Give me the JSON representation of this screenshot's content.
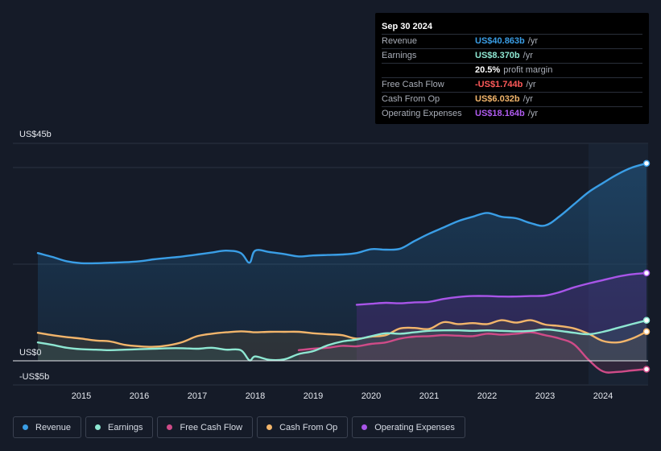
{
  "tooltip": {
    "date": "Sep 30 2024",
    "rows": [
      {
        "label": "Revenue",
        "value": "US$40.863b",
        "unit": "/yr",
        "color": "#3a9ee6"
      },
      {
        "label": "Earnings",
        "value": "US$8.370b",
        "unit": "/yr",
        "color": "#8ee7d2"
      },
      {
        "label": "",
        "value": "20.5%",
        "unit": "profit margin",
        "color": "#ffffff"
      },
      {
        "label": "Free Cash Flow",
        "value": "-US$1.744b",
        "unit": "/yr",
        "color": "#ff5a5a"
      },
      {
        "label": "Cash From Op",
        "value": "US$6.032b",
        "unit": "/yr",
        "color": "#f2b56b"
      },
      {
        "label": "Operating Expenses",
        "value": "US$18.164b",
        "unit": "/yr",
        "color": "#b05cf0"
      }
    ]
  },
  "legend": [
    {
      "label": "Revenue",
      "color": "#3a9ee6"
    },
    {
      "label": "Earnings",
      "color": "#8ee7d2"
    },
    {
      "label": "Free Cash Flow",
      "color": "#cf4b88"
    },
    {
      "label": "Cash From Op",
      "color": "#f2b56b"
    },
    {
      "label": "Operating Expenses",
      "color": "#a855e8"
    }
  ],
  "chart_data": {
    "type": "area",
    "ylim": [
      -5,
      45
    ],
    "y_tick_labels": [
      {
        "value": 45,
        "label": "US$45b"
      },
      {
        "value": 0,
        "label": "US$0"
      },
      {
        "value": -5,
        "label": "-US$5b"
      }
    ],
    "x_ticks": [
      2015,
      2016,
      2017,
      2018,
      2019,
      2020,
      2021,
      2022,
      2023,
      2024
    ],
    "xlim": [
      2014.25,
      2024.75
    ],
    "highlight_start": 2023.75,
    "series": [
      {
        "name": "Revenue",
        "color": "#3a9ee6",
        "x": [
          2014.25,
          2014.5,
          2014.75,
          2015.0,
          2015.25,
          2015.5,
          2015.75,
          2016.0,
          2016.25,
          2016.5,
          2016.75,
          2017.0,
          2017.25,
          2017.5,
          2017.75,
          2017.9,
          2018.0,
          2018.25,
          2018.5,
          2018.75,
          2019.0,
          2019.25,
          2019.5,
          2019.75,
          2020.0,
          2020.25,
          2020.5,
          2020.75,
          2021.0,
          2021.25,
          2021.5,
          2021.75,
          2022.0,
          2022.25,
          2022.5,
          2022.75,
          2023.0,
          2023.25,
          2023.5,
          2023.75,
          2024.0,
          2024.25,
          2024.5,
          2024.75
        ],
        "y": [
          22.3,
          21.5,
          20.6,
          20.2,
          20.2,
          20.3,
          20.4,
          20.6,
          21.0,
          21.3,
          21.6,
          22.0,
          22.4,
          22.8,
          22.3,
          20.3,
          22.8,
          22.5,
          22.1,
          21.6,
          21.8,
          21.9,
          22.0,
          22.3,
          23.1,
          23.0,
          23.2,
          24.8,
          26.3,
          27.6,
          28.9,
          29.8,
          30.6,
          29.8,
          29.5,
          28.5,
          28.0,
          29.9,
          32.4,
          34.9,
          36.8,
          38.6,
          40.0,
          40.863
        ]
      },
      {
        "name": "Earnings",
        "color": "#8ee7d2",
        "x": [
          2014.25,
          2014.5,
          2014.75,
          2015.0,
          2015.25,
          2015.5,
          2015.75,
          2016.0,
          2016.25,
          2016.5,
          2016.75,
          2017.0,
          2017.25,
          2017.5,
          2017.75,
          2017.9,
          2018.0,
          2018.25,
          2018.5,
          2018.75,
          2019.0,
          2019.25,
          2019.5,
          2019.75,
          2020.0,
          2020.25,
          2020.5,
          2020.75,
          2021.0,
          2021.25,
          2021.5,
          2021.75,
          2022.0,
          2022.25,
          2022.5,
          2022.75,
          2023.0,
          2023.25,
          2023.5,
          2023.75,
          2024.0,
          2024.25,
          2024.5,
          2024.75
        ],
        "y": [
          3.8,
          3.3,
          2.7,
          2.4,
          2.3,
          2.2,
          2.3,
          2.4,
          2.5,
          2.6,
          2.6,
          2.5,
          2.7,
          2.3,
          2.2,
          0.1,
          0.9,
          0.2,
          0.3,
          1.4,
          2.0,
          3.2,
          4.0,
          4.4,
          5.1,
          5.7,
          5.6,
          5.9,
          6.2,
          6.3,
          6.3,
          6.2,
          6.3,
          6.2,
          6.1,
          6.2,
          6.5,
          6.2,
          5.8,
          5.5,
          6.0,
          6.8,
          7.6,
          8.37
        ]
      },
      {
        "name": "Free Cash Flow",
        "color": "#cf4b88",
        "x": [
          2018.75,
          2019.0,
          2019.25,
          2019.5,
          2019.75,
          2020.0,
          2020.25,
          2020.5,
          2020.75,
          2021.0,
          2021.25,
          2021.5,
          2021.75,
          2022.0,
          2022.25,
          2022.5,
          2022.75,
          2023.0,
          2023.25,
          2023.5,
          2023.75,
          2024.0,
          2024.25,
          2024.5,
          2024.75
        ],
        "y": [
          2.2,
          2.5,
          2.7,
          3.1,
          3.0,
          3.5,
          3.8,
          4.6,
          5.0,
          5.1,
          5.3,
          5.2,
          5.1,
          5.6,
          5.4,
          5.6,
          5.9,
          5.3,
          4.6,
          3.4,
          0.2,
          -2.2,
          -2.3,
          -2.0,
          -1.744
        ]
      },
      {
        "name": "Cash From Op",
        "color": "#f2b56b",
        "x": [
          2014.25,
          2014.5,
          2014.75,
          2015.0,
          2015.25,
          2015.5,
          2015.75,
          2016.0,
          2016.25,
          2016.5,
          2016.75,
          2017.0,
          2017.25,
          2017.5,
          2017.75,
          2017.9,
          2018.0,
          2018.25,
          2018.5,
          2018.75,
          2019.0,
          2019.25,
          2019.5,
          2019.75,
          2020.0,
          2020.25,
          2020.5,
          2020.75,
          2021.0,
          2021.25,
          2021.5,
          2021.75,
          2022.0,
          2022.25,
          2022.5,
          2022.75,
          2023.0,
          2023.25,
          2023.5,
          2023.75,
          2024.0,
          2024.25,
          2024.5,
          2024.75
        ],
        "y": [
          5.8,
          5.3,
          4.9,
          4.6,
          4.2,
          4.0,
          3.3,
          3.0,
          2.9,
          3.2,
          3.9,
          5.1,
          5.6,
          5.9,
          6.1,
          6.0,
          5.9,
          6.0,
          6.0,
          6.0,
          5.7,
          5.5,
          5.3,
          4.6,
          5.0,
          5.3,
          6.7,
          6.8,
          6.6,
          8.0,
          7.6,
          7.8,
          7.6,
          8.4,
          7.9,
          8.4,
          7.5,
          7.2,
          6.7,
          5.6,
          4.1,
          3.8,
          4.6,
          6.032
        ]
      },
      {
        "name": "Operating Expenses",
        "color": "#a855e8",
        "x": [
          2019.75,
          2020.0,
          2020.25,
          2020.5,
          2020.75,
          2021.0,
          2021.25,
          2021.5,
          2021.75,
          2022.0,
          2022.25,
          2022.5,
          2022.75,
          2023.0,
          2023.25,
          2023.5,
          2023.75,
          2024.0,
          2024.25,
          2024.5,
          2024.75
        ],
        "y": [
          11.6,
          11.8,
          12.0,
          11.9,
          12.1,
          12.2,
          12.8,
          13.2,
          13.4,
          13.4,
          13.3,
          13.3,
          13.4,
          13.5,
          14.2,
          15.2,
          16.0,
          16.7,
          17.4,
          17.9,
          18.164
        ]
      }
    ]
  }
}
